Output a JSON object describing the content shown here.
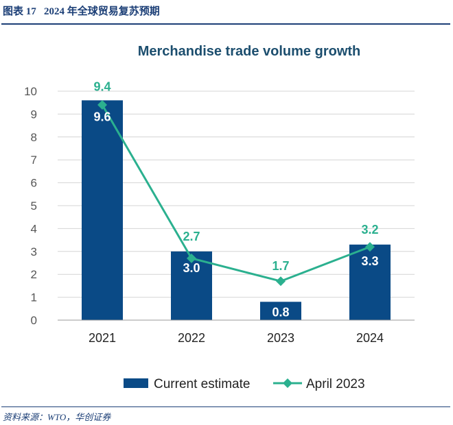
{
  "header": {
    "figure_label": "图表 17",
    "title": "2024 年全球贸易复苏预期"
  },
  "footer": {
    "source": "资料来源：WTO，华创证券"
  },
  "colors": {
    "bar": "#0a4a86",
    "line": "#2bb08f",
    "grid": "#d4d4d4",
    "title": "#1c4e6e",
    "axis_text": "#555555",
    "header": "#1b3e76"
  },
  "chart_data": {
    "type": "bar",
    "title": "Merchandise trade volume growth",
    "categories": [
      "2021",
      "2022",
      "2023",
      "2024"
    ],
    "ylim": [
      0,
      10
    ],
    "yticks": [
      0,
      1,
      2,
      3,
      4,
      5,
      6,
      7,
      8,
      9,
      10
    ],
    "grid": true,
    "legend_position": "bottom",
    "series": [
      {
        "name": "Current estimate",
        "kind": "bar",
        "values": [
          9.6,
          3.0,
          0.8,
          3.3
        ],
        "labels": [
          "9.6",
          "3.0",
          "0.8",
          "3.3"
        ]
      },
      {
        "name": "April 2023",
        "kind": "line",
        "marker": "diamond",
        "values": [
          9.4,
          2.7,
          1.7,
          3.2
        ],
        "labels": [
          "9.4",
          "2.7",
          "1.7",
          "3.2"
        ]
      }
    ]
  }
}
